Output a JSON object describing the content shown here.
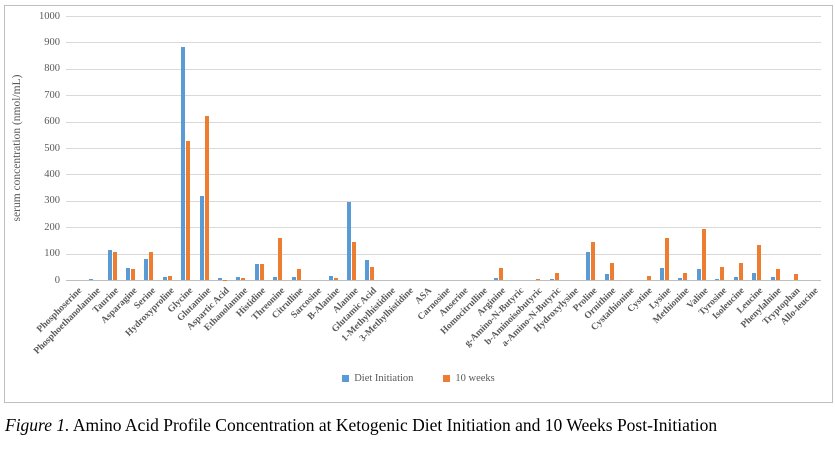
{
  "figure": {
    "caption_prefix": "Figure 1.",
    "caption_text": " Amino Acid Profile Concentration at Ketogenic Diet Initiation and 10 Weeks Post-Initiation"
  },
  "chart_data": {
    "type": "bar",
    "title": "",
    "xlabel": "",
    "ylabel": "serum concentration (nmol/mL)",
    "ylim": [
      0,
      1000
    ],
    "ytick_step": 100,
    "grid": true,
    "legend_position": "bottom",
    "colors": {
      "series1": "#5b9bd5",
      "series2": "#ed7d31",
      "gridline": "#d9d9d9",
      "axis_text": "#595959"
    },
    "categories": [
      "Phosphoserine",
      "Phosphoethanolamine",
      "Taurine",
      "Asparagine",
      "Serine",
      "Hydroxyproline",
      "Glycine",
      "Glutamine",
      "Aspartic Acid",
      "Ethanolamine",
      "Histidine",
      "Threonine",
      "Citrulline",
      "Sarcosine",
      "B-Alanine",
      "Alanine",
      "Glutamic Acid",
      "1-Methylhistidine",
      "3-Methylhistidine",
      "ASA",
      "Carnosine",
      "Anserine",
      "Homocitrulline",
      "Arginine",
      "g-Amino-N-Butyric",
      "b-Aminoisobutyric",
      "a-Amino-N-Butyric",
      "Hydroxylysine",
      "Proline",
      "Ornithine",
      "Cystathionine",
      "Cystine",
      "Lysine",
      "Methionine",
      "Valine",
      "Tyrosine",
      "Isoleucine",
      "Leucine",
      "Phenylalnine",
      "Tryptophan",
      "Allo-leucine"
    ],
    "series": [
      {
        "name": "Diet Initiation",
        "color": "#5b9bd5",
        "values": [
          0,
          5,
          112,
          45,
          80,
          10,
          882,
          320,
          6,
          10,
          62,
          12,
          13,
          0,
          15,
          295,
          75,
          0,
          0,
          0,
          0,
          0,
          0,
          8,
          0,
          0,
          4,
          0,
          107,
          22,
          0,
          0,
          45,
          8,
          43,
          5,
          10,
          28,
          12,
          0,
          0
        ]
      },
      {
        "name": "10 weeks",
        "color": "#ed7d31",
        "values": [
          0,
          0,
          107,
          42,
          108,
          17,
          526,
          620,
          2,
          7,
          60,
          158,
          43,
          0,
          8,
          145,
          48,
          0,
          0,
          0,
          0,
          0,
          0,
          44,
          0,
          3,
          25,
          0,
          143,
          64,
          0,
          15,
          158,
          26,
          193,
          49,
          66,
          132,
          42,
          22,
          0
        ]
      }
    ]
  }
}
